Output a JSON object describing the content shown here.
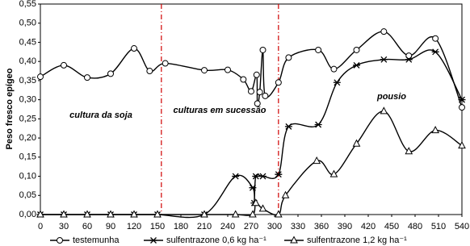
{
  "chart_data": {
    "type": "line",
    "y_label": "Peso fresco epígeo",
    "annotations": [
      "cultura da soja",
      "culturas em sucessão",
      "pousio"
    ],
    "xlim": [
      0,
      540
    ],
    "xticks": [
      0,
      30,
      60,
      90,
      120,
      150,
      180,
      210,
      240,
      270,
      300,
      330,
      360,
      390,
      420,
      450,
      480,
      510,
      540
    ],
    "ylim": [
      0,
      0.55
    ],
    "yticks": [
      {
        "value": 0,
        "label": "0,00"
      },
      {
        "value": 0.05,
        "label": "0,05"
      },
      {
        "value": 0.1,
        "label": "0,10"
      },
      {
        "value": 0.15,
        "label": "0,15"
      },
      {
        "value": 0.2,
        "label": "0,20"
      },
      {
        "value": 0.25,
        "label": "0,25"
      },
      {
        "value": 0.3,
        "label": "0,30"
      },
      {
        "value": 0.35,
        "label": "0,35"
      },
      {
        "value": 0.4,
        "label": "0,40"
      },
      {
        "value": 0.45,
        "label": "0,45"
      },
      {
        "value": 0.5,
        "label": "0,50"
      },
      {
        "value": 0.55,
        "label": "0,55"
      }
    ],
    "reference_lines": [
      {
        "x": 155,
        "color": "#d00000"
      },
      {
        "x": 305,
        "color": "#d00000"
      }
    ],
    "series": [
      {
        "name": "testemunha",
        "color": "#000000",
        "marker": "circle",
        "x": [
          0,
          30,
          60,
          90,
          120,
          140,
          160,
          210,
          240,
          260,
          270,
          277,
          278,
          281,
          285,
          288,
          305,
          318,
          356,
          376,
          405,
          440,
          472,
          506,
          540
        ],
        "values": [
          0.36,
          0.39,
          0.358,
          0.368,
          0.434,
          0.375,
          0.395,
          0.377,
          0.378,
          0.353,
          0.322,
          0.365,
          0.29,
          0.32,
          0.43,
          0.31,
          0.345,
          0.41,
          0.43,
          0.38,
          0.43,
          0.478,
          0.415,
          0.46,
          0.28
        ]
      },
      {
        "name": "sulfentrazone 0,6  kg ha⁻¹",
        "color": "#000000",
        "marker": "star",
        "x": [
          0,
          30,
          60,
          90,
          120,
          150,
          210,
          250,
          272,
          274,
          276,
          285,
          305,
          318,
          356,
          380,
          405,
          440,
          472,
          506,
          540
        ],
        "values": [
          0,
          0,
          0,
          0,
          0,
          0,
          0,
          0.1,
          0.07,
          0.03,
          0.1,
          0.1,
          0.105,
          0.23,
          0.235,
          0.345,
          0.39,
          0.405,
          0.405,
          0.425,
          0.3
        ]
      },
      {
        "name": "sulfentrazone 1,2  kg ha⁻¹",
        "color": "#000000",
        "marker": "triangle",
        "x": [
          0,
          30,
          60,
          90,
          120,
          150,
          210,
          250,
          272,
          276,
          285,
          305,
          314,
          354,
          376,
          405,
          440,
          472,
          506,
          540
        ],
        "values": [
          0,
          0,
          0,
          0,
          0,
          0,
          0,
          0,
          0,
          0.03,
          0.015,
          0,
          0.05,
          0.14,
          0.105,
          0.185,
          0.27,
          0.165,
          0.22,
          0.18
        ]
      }
    ]
  }
}
